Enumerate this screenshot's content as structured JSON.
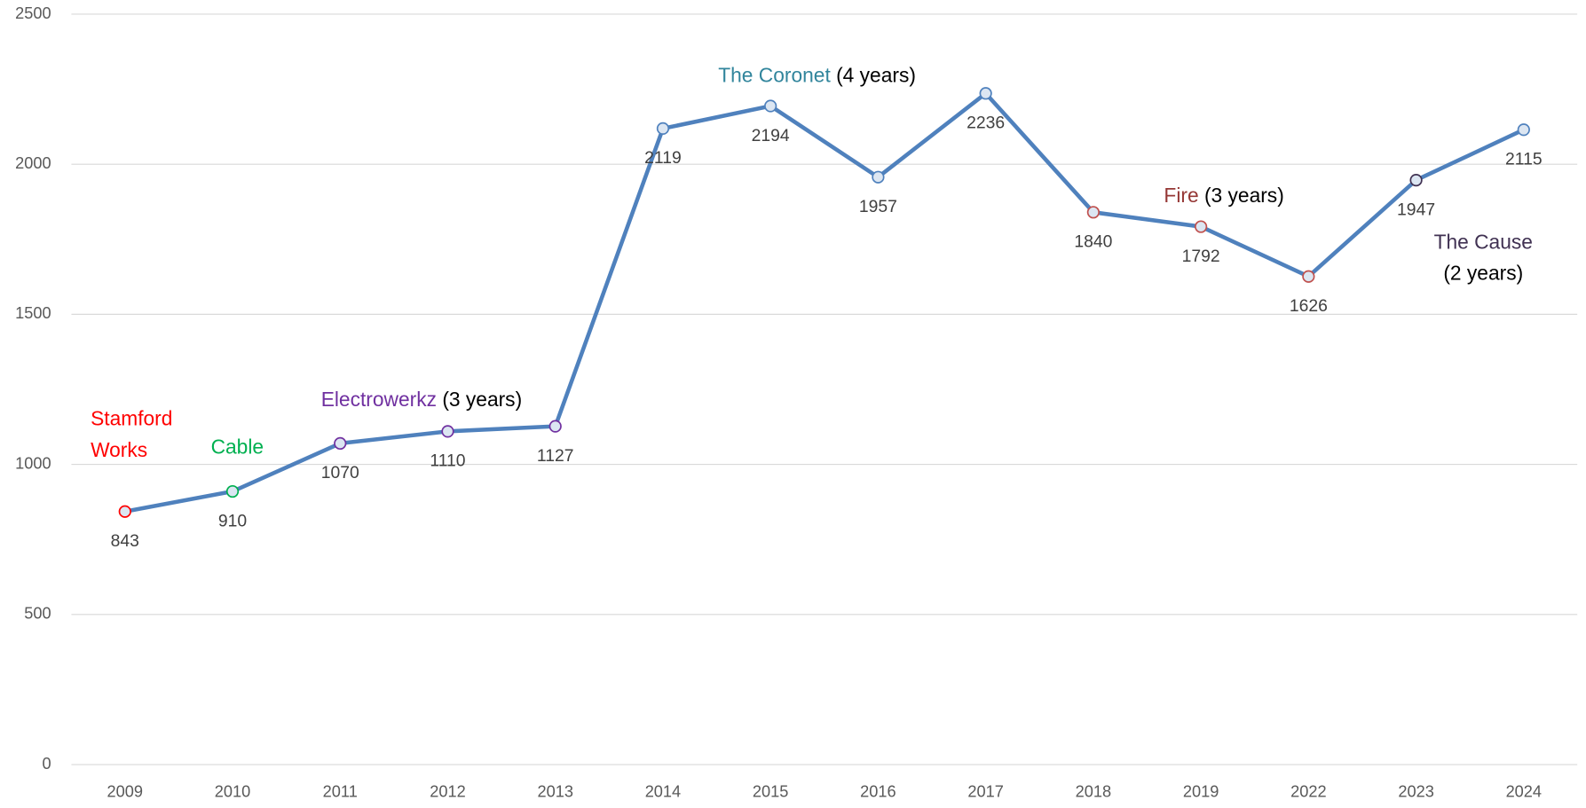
{
  "chart_data": {
    "type": "line",
    "categories": [
      "2009",
      "2010",
      "2011",
      "2012",
      "2013",
      "2014",
      "2015",
      "2016",
      "2017",
      "2018",
      "2019",
      "2022",
      "2023",
      "2024"
    ],
    "series": [
      {
        "color": "#4f81bd",
        "values": [
          843,
          910,
          1070,
          1110,
          1127,
          2119,
          2194,
          1957,
          2236,
          1840,
          1792,
          1626,
          1947,
          2115
        ],
        "marker_colors": [
          "#ff0000",
          "#00b050",
          "#7030a0",
          "#7030a0",
          "#7030a0",
          "#4f81bd",
          "#4f81bd",
          "#4f81bd",
          "#4f81bd",
          "#c0504d",
          "#c0504d",
          "#c0504d",
          "#403152",
          "#4f81bd"
        ]
      }
    ],
    "ylim": [
      0,
      2500
    ],
    "yticks": [
      0,
      500,
      1000,
      1500,
      2000,
      2500
    ],
    "grid": true,
    "annotations": [
      {
        "lines": [
          [
            {
              "text": "Stamford",
              "color": "#ff0000"
            }
          ],
          [
            {
              "text": "Works",
              "color": "#ff0000"
            }
          ]
        ]
      },
      {
        "lines": [
          [
            {
              "text": "Cable",
              "color": "#00b050"
            }
          ]
        ]
      },
      {
        "lines": [
          [
            {
              "text": "Electrowerkz",
              "color": "#7030a0"
            },
            {
              "text": " (3 years)",
              "color": "#000000"
            }
          ]
        ]
      },
      {
        "lines": [
          [
            {
              "text": "The Coronet",
              "color": "#31859c"
            },
            {
              "text": " (4 years)",
              "color": "#000000"
            }
          ]
        ]
      },
      {
        "lines": [
          [
            {
              "text": "Fire",
              "color": "#953735"
            },
            {
              "text": " (3 years)",
              "color": "#000000"
            }
          ]
        ]
      },
      {
        "lines": [
          [
            {
              "text": "The Cause",
              "color": "#403152"
            }
          ],
          [
            {
              "text": "(2 years)",
              "color": "#000000"
            }
          ]
        ]
      }
    ]
  }
}
